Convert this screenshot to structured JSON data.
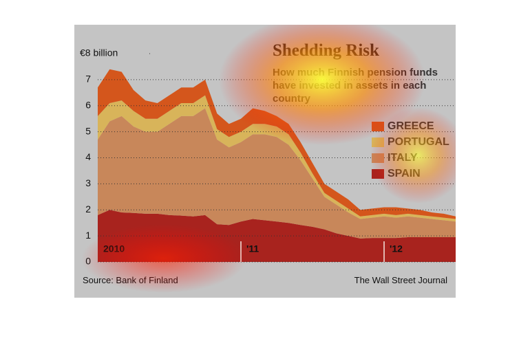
{
  "chart_data": {
    "type": "area",
    "stacked": true,
    "title": "Shedding Risk",
    "subtitle": "How much Finnish pension funds have invested in assets in each country",
    "source": "Source: Bank of Finland",
    "credit": "The Wall Street Journal",
    "categories": [
      "2010",
      null,
      null,
      null,
      null,
      null,
      null,
      null,
      null,
      null,
      null,
      null,
      "'11",
      null,
      null,
      null,
      null,
      null,
      null,
      null,
      null,
      null,
      null,
      null,
      "'12",
      null,
      null,
      null,
      null,
      null,
      null
    ],
    "series": [
      {
        "name": "GREECE",
        "color": "#d4561c",
        "values": [
          1.1,
          1.3,
          1.1,
          0.8,
          0.7,
          0.6,
          0.6,
          0.6,
          0.6,
          0.6,
          0.6,
          0.5,
          0.5,
          0.6,
          0.5,
          0.4,
          0.4,
          0.4,
          0.4,
          0.35,
          0.35,
          0.35,
          0.25,
          0.25,
          0.25,
          0.3,
          0.2,
          0.2,
          0.15,
          0.15,
          0.1
        ]
      },
      {
        "name": "PORTUGAL",
        "color": "#d8b45a",
        "values": [
          0.9,
          0.7,
          0.6,
          0.6,
          0.5,
          0.5,
          0.5,
          0.5,
          0.5,
          0.5,
          0.4,
          0.4,
          0.4,
          0.4,
          0.4,
          0.4,
          0.4,
          0.3,
          0.2,
          0.15,
          0.15,
          0.15,
          0.1,
          0.1,
          0.1,
          0.1,
          0.1,
          0.1,
          0.1,
          0.1,
          0.1
        ]
      },
      {
        "name": "ITALY",
        "color": "#c8875a",
        "values": [
          2.9,
          3.4,
          3.7,
          3.32,
          3.15,
          3.15,
          3.5,
          3.82,
          3.85,
          4.1,
          3.25,
          2.98,
          3.05,
          3.25,
          3.3,
          3.25,
          3.0,
          2.48,
          1.85,
          1.25,
          1.1,
          0.9,
          0.75,
          0.78,
          0.83,
          0.78,
          0.8,
          0.75,
          0.7,
          0.65,
          0.6
        ]
      },
      {
        "name": "SPAIN",
        "color": "#a8231e",
        "values": [
          1.8,
          2.0,
          1.9,
          1.88,
          1.85,
          1.85,
          1.8,
          1.78,
          1.75,
          1.8,
          1.45,
          1.42,
          1.55,
          1.65,
          1.6,
          1.55,
          1.5,
          1.42,
          1.35,
          1.25,
          1.1,
          1.0,
          0.9,
          0.92,
          0.92,
          0.92,
          0.95,
          0.95,
          0.95,
          0.95,
          0.95
        ]
      }
    ],
    "ylim": [
      0,
      8
    ],
    "yticks": [
      0,
      1,
      2,
      3,
      4,
      5,
      6,
      7,
      {
        "value": 8,
        "label": "€8 billion"
      }
    ],
    "grid": true
  }
}
